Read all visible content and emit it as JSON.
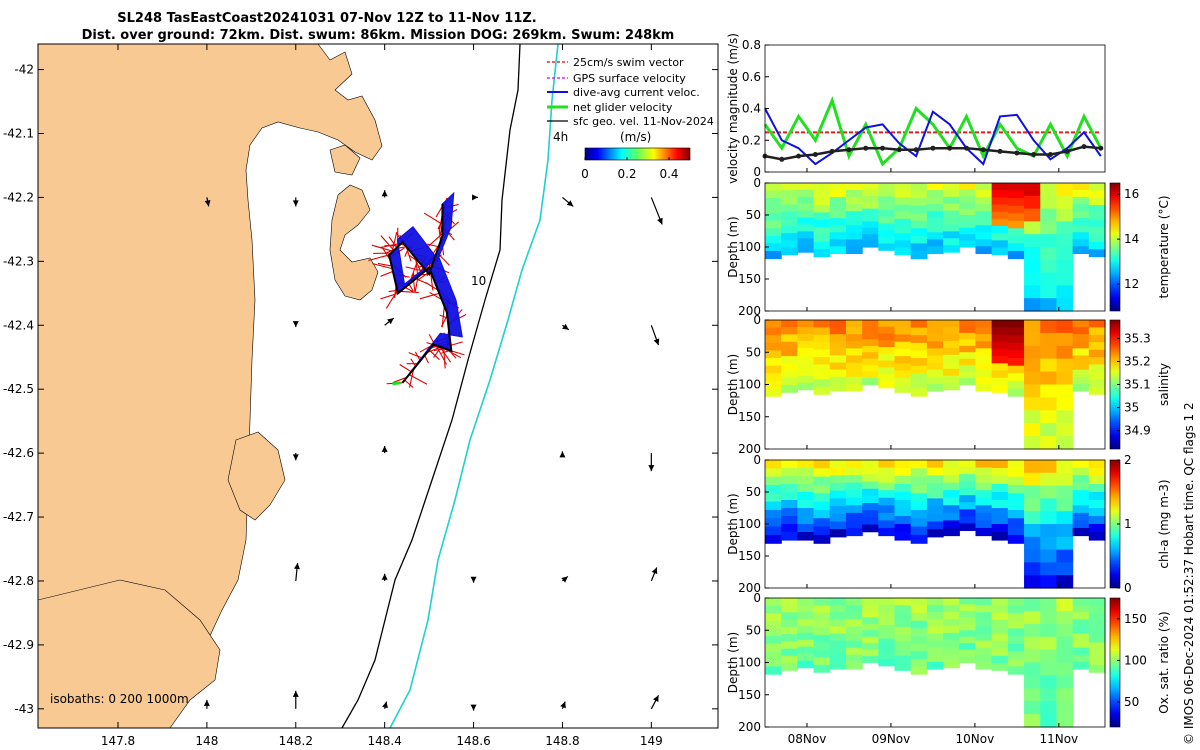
{
  "title": {
    "line1": "SL248 TasEastCoast20241031 07-Nov 12Z to 11-Nov 11Z.",
    "line2": "Dist. over ground: 72km. Dist. swum: 86km. Mission DOG: 269km. Swum: 248km"
  },
  "colors": {
    "land": "#f9c994",
    "swim": "#e00000",
    "gps": "#e000e0",
    "dive": "#1010e0",
    "net": "#20e020",
    "sfc": "#000000",
    "isobath_200": "#000000",
    "isobath_1000": "#20d0d0",
    "panel_red": "#e02020",
    "panel_green": "#20e020",
    "panel_blue": "#1010e0",
    "panel_black": "#202020"
  },
  "chart_data": [
    {
      "type": "map",
      "name": "glider-track-map",
      "xlabel_ticks": [
        "147.8",
        "148",
        "148.2",
        "148.4",
        "148.6",
        "148.8",
        "149"
      ],
      "ylabel_ticks": [
        "-42",
        "-42.1",
        "-42.2",
        "-42.3",
        "-42.4",
        "-42.5",
        "-42.6",
        "-42.7",
        "-42.8",
        "-42.9",
        "-43"
      ],
      "lon_range": [
        147.62,
        149.15
      ],
      "lat_range": [
        -43.03,
        -41.96
      ],
      "legend": {
        "entries": [
          "25cm/s swim vector",
          "GPS surface velocity",
          "dive-avg current veloc.",
          "net glider velocity",
          "sfc geo. vel. 11-Nov-2024"
        ],
        "colorbar_title": "(m/s)",
        "colorbar_ticks": [
          "0",
          "0.2",
          "0.4"
        ],
        "colorbar_range": [
          0,
          0.5
        ]
      },
      "annotations": {
        "time_label": "4h",
        "point_label": "10",
        "isobaths": "isobaths: 0   200  1000m"
      },
      "track": [
        [
          148.44,
          -42.49
        ],
        [
          148.51,
          -42.43
        ],
        [
          148.55,
          -42.44
        ],
        [
          148.54,
          -42.38
        ],
        [
          148.5,
          -42.31
        ],
        [
          148.43,
          -42.35
        ],
        [
          148.41,
          -42.29
        ],
        [
          148.44,
          -42.27
        ],
        [
          148.5,
          -42.32
        ],
        [
          148.53,
          -42.26
        ],
        [
          148.53,
          -42.21
        ]
      ],
      "sfc_vectors": [
        [
          148.0,
          -42.2,
          0.02,
          -0.1
        ],
        [
          148.2,
          -42.2,
          0.0,
          -0.1
        ],
        [
          148.4,
          -42.2,
          0.0,
          0.08
        ],
        [
          148.6,
          -42.2,
          0.05,
          0
        ],
        [
          148.8,
          -42.2,
          0.12,
          -0.1
        ],
        [
          149.0,
          -42.2,
          0.12,
          -0.3
        ],
        [
          148.2,
          -42.4,
          0,
          -0.02
        ],
        [
          148.4,
          -42.4,
          0.1,
          0.08
        ],
        [
          148.6,
          -42.4,
          0.0,
          0.0
        ],
        [
          148.8,
          -42.4,
          0.07,
          -0.05
        ],
        [
          149.0,
          -42.4,
          0.08,
          -0.22
        ],
        [
          148.2,
          -42.6,
          0,
          -0.08
        ],
        [
          148.4,
          -42.6,
          0,
          0.08
        ],
        [
          148.8,
          -42.6,
          0,
          0.02
        ],
        [
          149.0,
          -42.6,
          0,
          -0.2
        ],
        [
          148.2,
          -42.8,
          0.02,
          0.2
        ],
        [
          148.4,
          -42.8,
          0,
          0.08
        ],
        [
          148.6,
          -42.8,
          0,
          -0.02
        ],
        [
          148.8,
          -42.8,
          0.06,
          0.05
        ],
        [
          149.0,
          -42.8,
          0.06,
          0.15
        ],
        [
          148.0,
          -43.0,
          0,
          0.1
        ],
        [
          148.2,
          -43.0,
          0,
          0.2
        ],
        [
          148.4,
          -43.0,
          0.02,
          0.08
        ],
        [
          148.6,
          -43.0,
          0,
          -0.02
        ],
        [
          148.8,
          -43.0,
          0.03,
          0.08
        ],
        [
          149.0,
          -43.0,
          0.08,
          0.15
        ]
      ],
      "tick_label_top_right": "-42"
    },
    {
      "type": "line",
      "name": "velocity-magnitude",
      "ylabel": "velocity magnitude (m/s)",
      "ylim": [
        0,
        0.8
      ],
      "yticks": [
        "0",
        "0.2",
        "0.4",
        "0.6",
        "0.8"
      ],
      "x": [
        0,
        0.2,
        0.4,
        0.6,
        0.8,
        1.0,
        1.2,
        1.4,
        1.6,
        1.8,
        2.0,
        2.2,
        2.4,
        2.6,
        2.8,
        3.0,
        3.2,
        3.4,
        3.6,
        3.8,
        4.0
      ],
      "series": [
        {
          "name": "swim",
          "color": "red",
          "values": [
            0.25,
            0.25,
            0.25,
            0.25,
            0.25,
            0.25,
            0.25,
            0.25,
            0.25,
            0.25,
            0.25,
            0.25,
            0.25,
            0.25,
            0.25,
            0.25,
            0.25,
            0.25,
            0.25,
            0.25,
            0.25
          ]
        },
        {
          "name": "net",
          "color": "green",
          "values": [
            0.3,
            0.15,
            0.35,
            0.2,
            0.45,
            0.1,
            0.3,
            0.05,
            0.15,
            0.4,
            0.3,
            0.15,
            0.35,
            0.1,
            0.3,
            0.15,
            0.1,
            0.3,
            0.1,
            0.35,
            0.15
          ]
        },
        {
          "name": "dive",
          "color": "blue",
          "values": [
            0.4,
            0.2,
            0.15,
            0.05,
            0.12,
            0.2,
            0.28,
            0.3,
            0.18,
            0.1,
            0.38,
            0.3,
            0.15,
            0.05,
            0.35,
            0.36,
            0.2,
            0.08,
            0.15,
            0.25,
            0.1
          ]
        },
        {
          "name": "sfc",
          "color": "black",
          "values": [
            0.1,
            0.08,
            0.1,
            0.11,
            0.13,
            0.14,
            0.15,
            0.15,
            0.14,
            0.14,
            0.15,
            0.15,
            0.15,
            0.14,
            0.13,
            0.12,
            0.11,
            0.11,
            0.13,
            0.16,
            0.15
          ]
        }
      ]
    },
    {
      "type": "heatmap",
      "name": "temperature-section",
      "ylabel": "Depth (m)",
      "cbar_label": "temperature (°C)",
      "cbar_ticks": [
        "12",
        "14",
        "16"
      ],
      "cbar_range": [
        10.8,
        16.5
      ],
      "ylim": [
        0,
        200
      ],
      "yticks": [
        "0",
        "50",
        "100",
        "150",
        "200"
      ],
      "depth_profile_m": [
        118,
        112,
        108,
        115,
        110,
        110,
        100,
        105,
        112,
        118,
        110,
        108,
        100,
        110,
        112,
        118,
        200,
        200,
        200,
        110,
        115
      ],
      "surface_value": 14.2,
      "bottom_value": 12.6,
      "hot_patch": {
        "day_range": [
          2.65,
          3.25
        ],
        "value": 16.0
      }
    },
    {
      "type": "heatmap",
      "name": "salinity-section",
      "ylabel": "Depth (m)",
      "cbar_label": "salinity",
      "cbar_ticks": [
        "34.9",
        "35",
        "35.1",
        "35.2",
        "35.3"
      ],
      "cbar_range": [
        34.82,
        35.38
      ],
      "ylim": [
        0,
        200
      ],
      "yticks": [
        "0",
        "50",
        "100",
        "150",
        "200"
      ],
      "depth_profile_m": [
        118,
        112,
        108,
        115,
        110,
        110,
        100,
        105,
        112,
        118,
        110,
        108,
        100,
        110,
        112,
        118,
        200,
        200,
        200,
        110,
        115
      ],
      "surface_value": 35.24,
      "bottom_value": 35.14,
      "hot_patch": {
        "day_range": [
          2.7,
          3.1
        ],
        "value": 35.38
      }
    },
    {
      "type": "heatmap",
      "name": "chl-a-section",
      "ylabel": "Depth (m)",
      "cbar_label": "chl-a (mg m-3)",
      "cbar_ticks": [
        "0",
        "1",
        "2"
      ],
      "cbar_range": [
        0,
        2
      ],
      "ylim": [
        0,
        200
      ],
      "yticks": [
        "0",
        "50",
        "100",
        "150",
        "200"
      ],
      "depth_profile_m": [
        130,
        125,
        125,
        130,
        120,
        118,
        112,
        118,
        125,
        130,
        120,
        118,
        110,
        118,
        125,
        130,
        200,
        200,
        200,
        118,
        125
      ],
      "surface_value": 1.3,
      "bottom_value": 0.2
    },
    {
      "type": "heatmap",
      "name": "oxygen-section",
      "ylabel": "Depth (m)",
      "cbar_label": "Ox. sat. ratio (%)",
      "cbar_ticks": [
        "50",
        "100",
        "150"
      ],
      "cbar_range": [
        20,
        175
      ],
      "ylim": [
        0,
        200
      ],
      "yticks": [
        "0",
        "50",
        "100",
        "150",
        "200"
      ],
      "depth_profile_m": [
        118,
        112,
        108,
        115,
        110,
        110,
        100,
        105,
        112,
        118,
        110,
        108,
        100,
        110,
        112,
        118,
        200,
        200,
        200,
        110,
        115
      ],
      "surface_value": 102,
      "bottom_value": 95
    }
  ],
  "time_axis": {
    "ticks": [
      "08Nov",
      "09Nov",
      "10Nov",
      "11Nov"
    ],
    "tick_days": [
      0.5,
      1.5,
      2.5,
      3.5
    ],
    "range_days": [
      0,
      4.05
    ]
  },
  "footer": "© IMOS 06-Dec-2024 01:52:37 Hobart time. QC flags 1  2"
}
